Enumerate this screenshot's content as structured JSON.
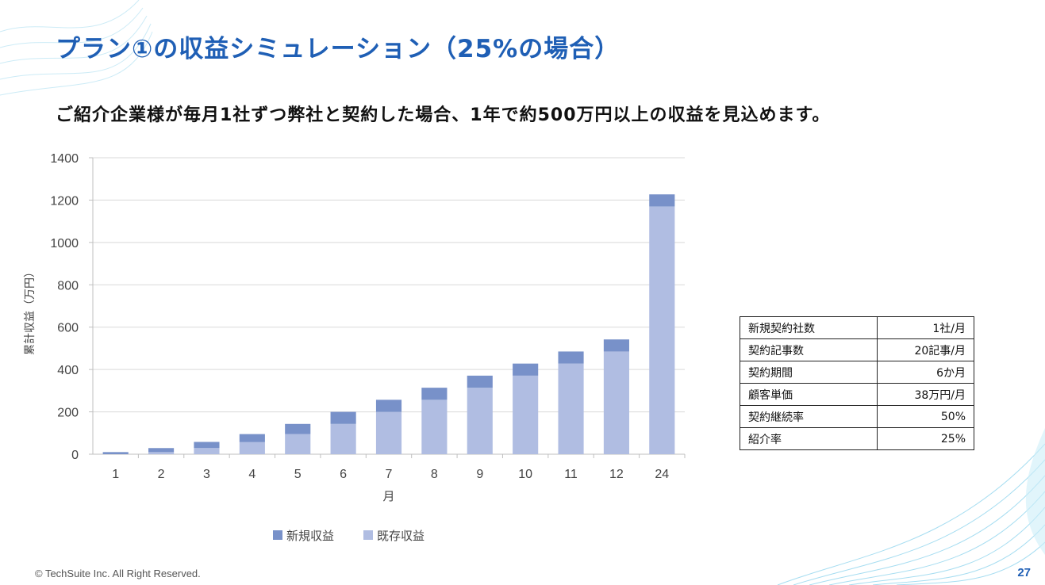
{
  "slide": {
    "title": "プラン①の収益シミュレーション（25%の場合）",
    "subtitle": "ご紹介企業様が毎月1社ずつ弊社と契約した場合、1年で約500万円以上の収益を見込めます。",
    "footer": "© TechSuite Inc. All Right Reserved.",
    "page_number": "27"
  },
  "chart_data": {
    "type": "bar",
    "stacked": true,
    "categories": [
      "1",
      "2",
      "3",
      "4",
      "5",
      "6",
      "7",
      "8",
      "9",
      "10",
      "11",
      "12",
      "24"
    ],
    "series": [
      {
        "name": "既存収益",
        "color": "#b0bde2",
        "values": [
          0,
          10,
          29,
          57,
          95,
          143,
          200,
          257,
          314,
          371,
          428,
          485,
          1170
        ]
      },
      {
        "name": "新規収益",
        "color": "#7891c9",
        "values": [
          10,
          19,
          29,
          38,
          48,
          57,
          57,
          57,
          57,
          57,
          57,
          57,
          57
        ]
      }
    ],
    "xlabel": "月",
    "ylabel": "累計収益（万円）",
    "ylim": [
      0,
      1400
    ],
    "yticks": [
      0,
      200,
      400,
      600,
      800,
      1000,
      1200,
      1400
    ],
    "grid": true,
    "legend_position": "bottom",
    "legend_order": [
      "新規収益",
      "既存収益"
    ]
  },
  "params_table": [
    {
      "label": "新規契約社数",
      "value": "1社/月"
    },
    {
      "label": "契約記事数",
      "value": "20記事/月"
    },
    {
      "label": "契約期間",
      "value": "6か月"
    },
    {
      "label": "顧客単価",
      "value": "38万円/月"
    },
    {
      "label": "契約継続率",
      "value": "50%"
    },
    {
      "label": "紹介率",
      "value": "25%"
    }
  ]
}
